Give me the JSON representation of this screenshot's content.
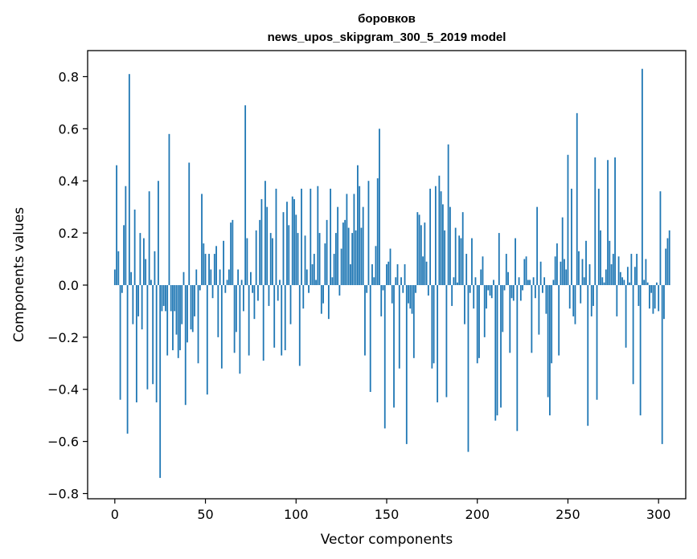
{
  "chart_data": {
    "type": "bar",
    "title_line1": "боровков",
    "title_line2": "news_upos_skipgram_300_5_2019 model",
    "xlabel": "Vector components",
    "ylabel": "Components values",
    "xlim": [
      -15,
      315
    ],
    "ylim": [
      -0.82,
      0.9
    ],
    "xticks": [
      0,
      50,
      100,
      150,
      200,
      250,
      300
    ],
    "xtick_labels": [
      "0",
      "50",
      "100",
      "150",
      "200",
      "250",
      "300"
    ],
    "yticks": [
      -0.8,
      -0.6,
      -0.4,
      -0.2,
      0.0,
      0.2,
      0.4,
      0.6,
      0.8
    ],
    "ytick_labels": [
      "−0.8",
      "−0.6",
      "−0.4",
      "−0.2",
      "0.0",
      "0.2",
      "0.4",
      "0.6",
      "0.8"
    ],
    "bar_color": "#1f77b4",
    "grid": false,
    "values": [
      0.06,
      0.46,
      0.13,
      -0.44,
      -0.03,
      0.23,
      0.38,
      -0.57,
      0.81,
      0.05,
      -0.15,
      0.29,
      -0.45,
      -0.12,
      0.2,
      -0.17,
      0.18,
      0.1,
      -0.4,
      0.36,
      0.02,
      -0.38,
      0.13,
      -0.45,
      0.4,
      -0.74,
      -0.1,
      -0.08,
      -0.1,
      -0.27,
      0.58,
      -0.1,
      -0.25,
      -0.1,
      -0.19,
      -0.28,
      -0.25,
      -0.15,
      0.05,
      -0.46,
      -0.22,
      0.47,
      -0.17,
      -0.18,
      -0.12,
      0.06,
      -0.3,
      -0.02,
      0.35,
      0.16,
      0.12,
      -0.42,
      0.12,
      0.06,
      -0.05,
      0.12,
      0.15,
      -0.2,
      0.06,
      -0.32,
      0.17,
      -0.03,
      0.02,
      0.06,
      0.24,
      0.25,
      -0.26,
      -0.18,
      0.06,
      -0.34,
      0.02,
      -0.1,
      0.69,
      0.18,
      -0.27,
      0.05,
      -0.03,
      -0.13,
      0.21,
      -0.06,
      0.25,
      0.33,
      -0.29,
      0.4,
      0.3,
      -0.08,
      0.2,
      0.18,
      -0.24,
      0.37,
      -0.06,
      0.02,
      -0.27,
      0.28,
      -0.25,
      0.32,
      0.23,
      -0.15,
      0.34,
      0.33,
      0.27,
      0.2,
      -0.31,
      0.37,
      -0.09,
      0.19,
      0.06,
      -0.03,
      0.37,
      0.08,
      0.12,
      0.02,
      0.38,
      0.2,
      -0.11,
      -0.07,
      0.16,
      0.25,
      -0.13,
      0.37,
      0.03,
      0.12,
      0.2,
      0.3,
      -0.04,
      0.14,
      0.24,
      0.25,
      0.35,
      0.22,
      0.08,
      0.2,
      0.35,
      0.21,
      0.46,
      0.38,
      0.22,
      0.3,
      -0.27,
      -0.03,
      0.4,
      -0.41,
      0.08,
      0.03,
      0.15,
      0.41,
      0.6,
      -0.12,
      -0.02,
      -0.55,
      0.08,
      0.09,
      0.14,
      -0.07,
      -0.47,
      0.03,
      0.08,
      -0.32,
      0.03,
      -0.03,
      0.08,
      -0.61,
      -0.07,
      -0.09,
      -0.11,
      -0.28,
      -0.03,
      0.28,
      0.27,
      0.23,
      0.11,
      0.24,
      0.09,
      -0.04,
      0.37,
      -0.32,
      -0.3,
      0.38,
      -0.45,
      0.42,
      0.36,
      0.31,
      0.21,
      -0.43,
      0.54,
      0.3,
      -0.08,
      0.03,
      0.22,
      0.01,
      0.19,
      0.18,
      0.28,
      -0.15,
      0.12,
      -0.64,
      -0.03,
      0.18,
      -0.09,
      0.03,
      -0.3,
      -0.28,
      0.06,
      0.11,
      -0.2,
      -0.09,
      -0.02,
      -0.04,
      -0.05,
      0.02,
      -0.52,
      -0.5,
      0.2,
      -0.47,
      -0.18,
      -0.02,
      0.12,
      0.05,
      -0.26,
      -0.05,
      -0.06,
      0.18,
      -0.56,
      0.03,
      -0.06,
      -0.02,
      0.1,
      0.11,
      0.02,
      0.02,
      -0.26,
      0.03,
      -0.05,
      0.3,
      -0.19,
      0.09,
      -0.03,
      0.03,
      -0.11,
      -0.43,
      -0.5,
      -0.3,
      0.02,
      0.11,
      0.16,
      -0.27,
      0.09,
      0.26,
      0.1,
      0.06,
      0.5,
      -0.09,
      0.37,
      -0.12,
      -0.15,
      0.66,
      0.13,
      -0.07,
      0.1,
      0.03,
      0.17,
      -0.54,
      0.08,
      -0.12,
      -0.08,
      0.49,
      -0.44,
      0.37,
      0.21,
      0.03,
      0.01,
      0.06,
      0.48,
      0.17,
      0.08,
      0.12,
      0.49,
      -0.12,
      0.11,
      0.05,
      0.03,
      0.02,
      -0.24,
      0.07,
      0.01,
      0.12,
      -0.38,
      0.07,
      0.12,
      -0.08,
      -0.5,
      0.83,
      0.02,
      0.1,
      0.01,
      -0.09,
      -0.03,
      -0.11,
      -0.09,
      0.01,
      -0.1,
      0.36,
      -0.61,
      -0.13,
      0.14,
      0.18,
      0.21
    ]
  }
}
